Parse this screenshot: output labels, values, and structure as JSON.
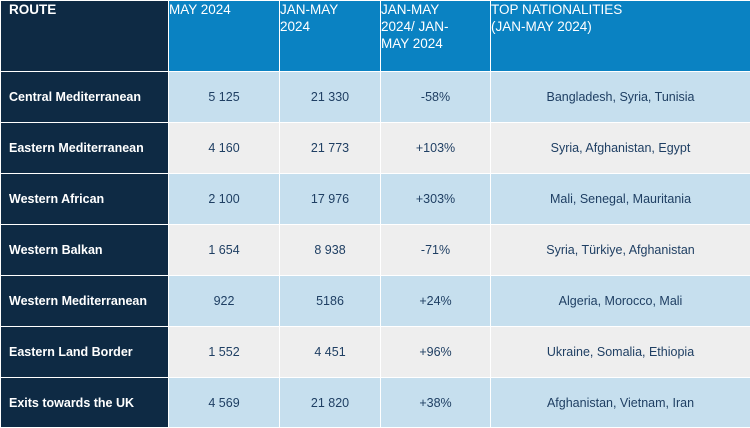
{
  "header": {
    "route": "ROUTE",
    "may": "MAY 2024",
    "jan_may": "JAN-MAY 2024",
    "change": "JAN-MAY 2024/ JAN-MAY 2024",
    "nationalities": "TOP NATIONALITIES (JAN-MAY 2024)"
  },
  "rows": [
    {
      "route": "Central Mediterranean",
      "may": "5 125",
      "jan_may": "21 330",
      "change": "-58%",
      "nationalities": "Bangladesh, Syria, Tunisia"
    },
    {
      "route": "Eastern Mediterranean",
      "may": "4 160",
      "jan_may": "21 773",
      "change": "+103%",
      "nationalities": "Syria, Afghanistan, Egypt"
    },
    {
      "route": "Western African",
      "may": "2 100",
      "jan_may": "17 976",
      "change": "+303%",
      "nationalities": "Mali, Senegal, Mauritania"
    },
    {
      "route": "Western Balkan",
      "may": "1 654",
      "jan_may": "8 938",
      "change": "-71%",
      "nationalities": "Syria, Türkiye, Afghanistan"
    },
    {
      "route": "Western Mediterranean",
      "may": "922",
      "jan_may": "5186",
      "change": "+24%",
      "nationalities": "Algeria, Morocco, Mali"
    },
    {
      "route": "Eastern Land Border",
      "may": "1 552",
      "jan_may": "4 451",
      "change": "+96%",
      "nationalities": "Ukraine, Somalia, Ethiopia"
    },
    {
      "route": "Exits towards the UK",
      "may": "4 569",
      "jan_may": "21 820",
      "change": "+38%",
      "nationalities": "Afghanistan, Vietnam, Iran"
    }
  ]
}
